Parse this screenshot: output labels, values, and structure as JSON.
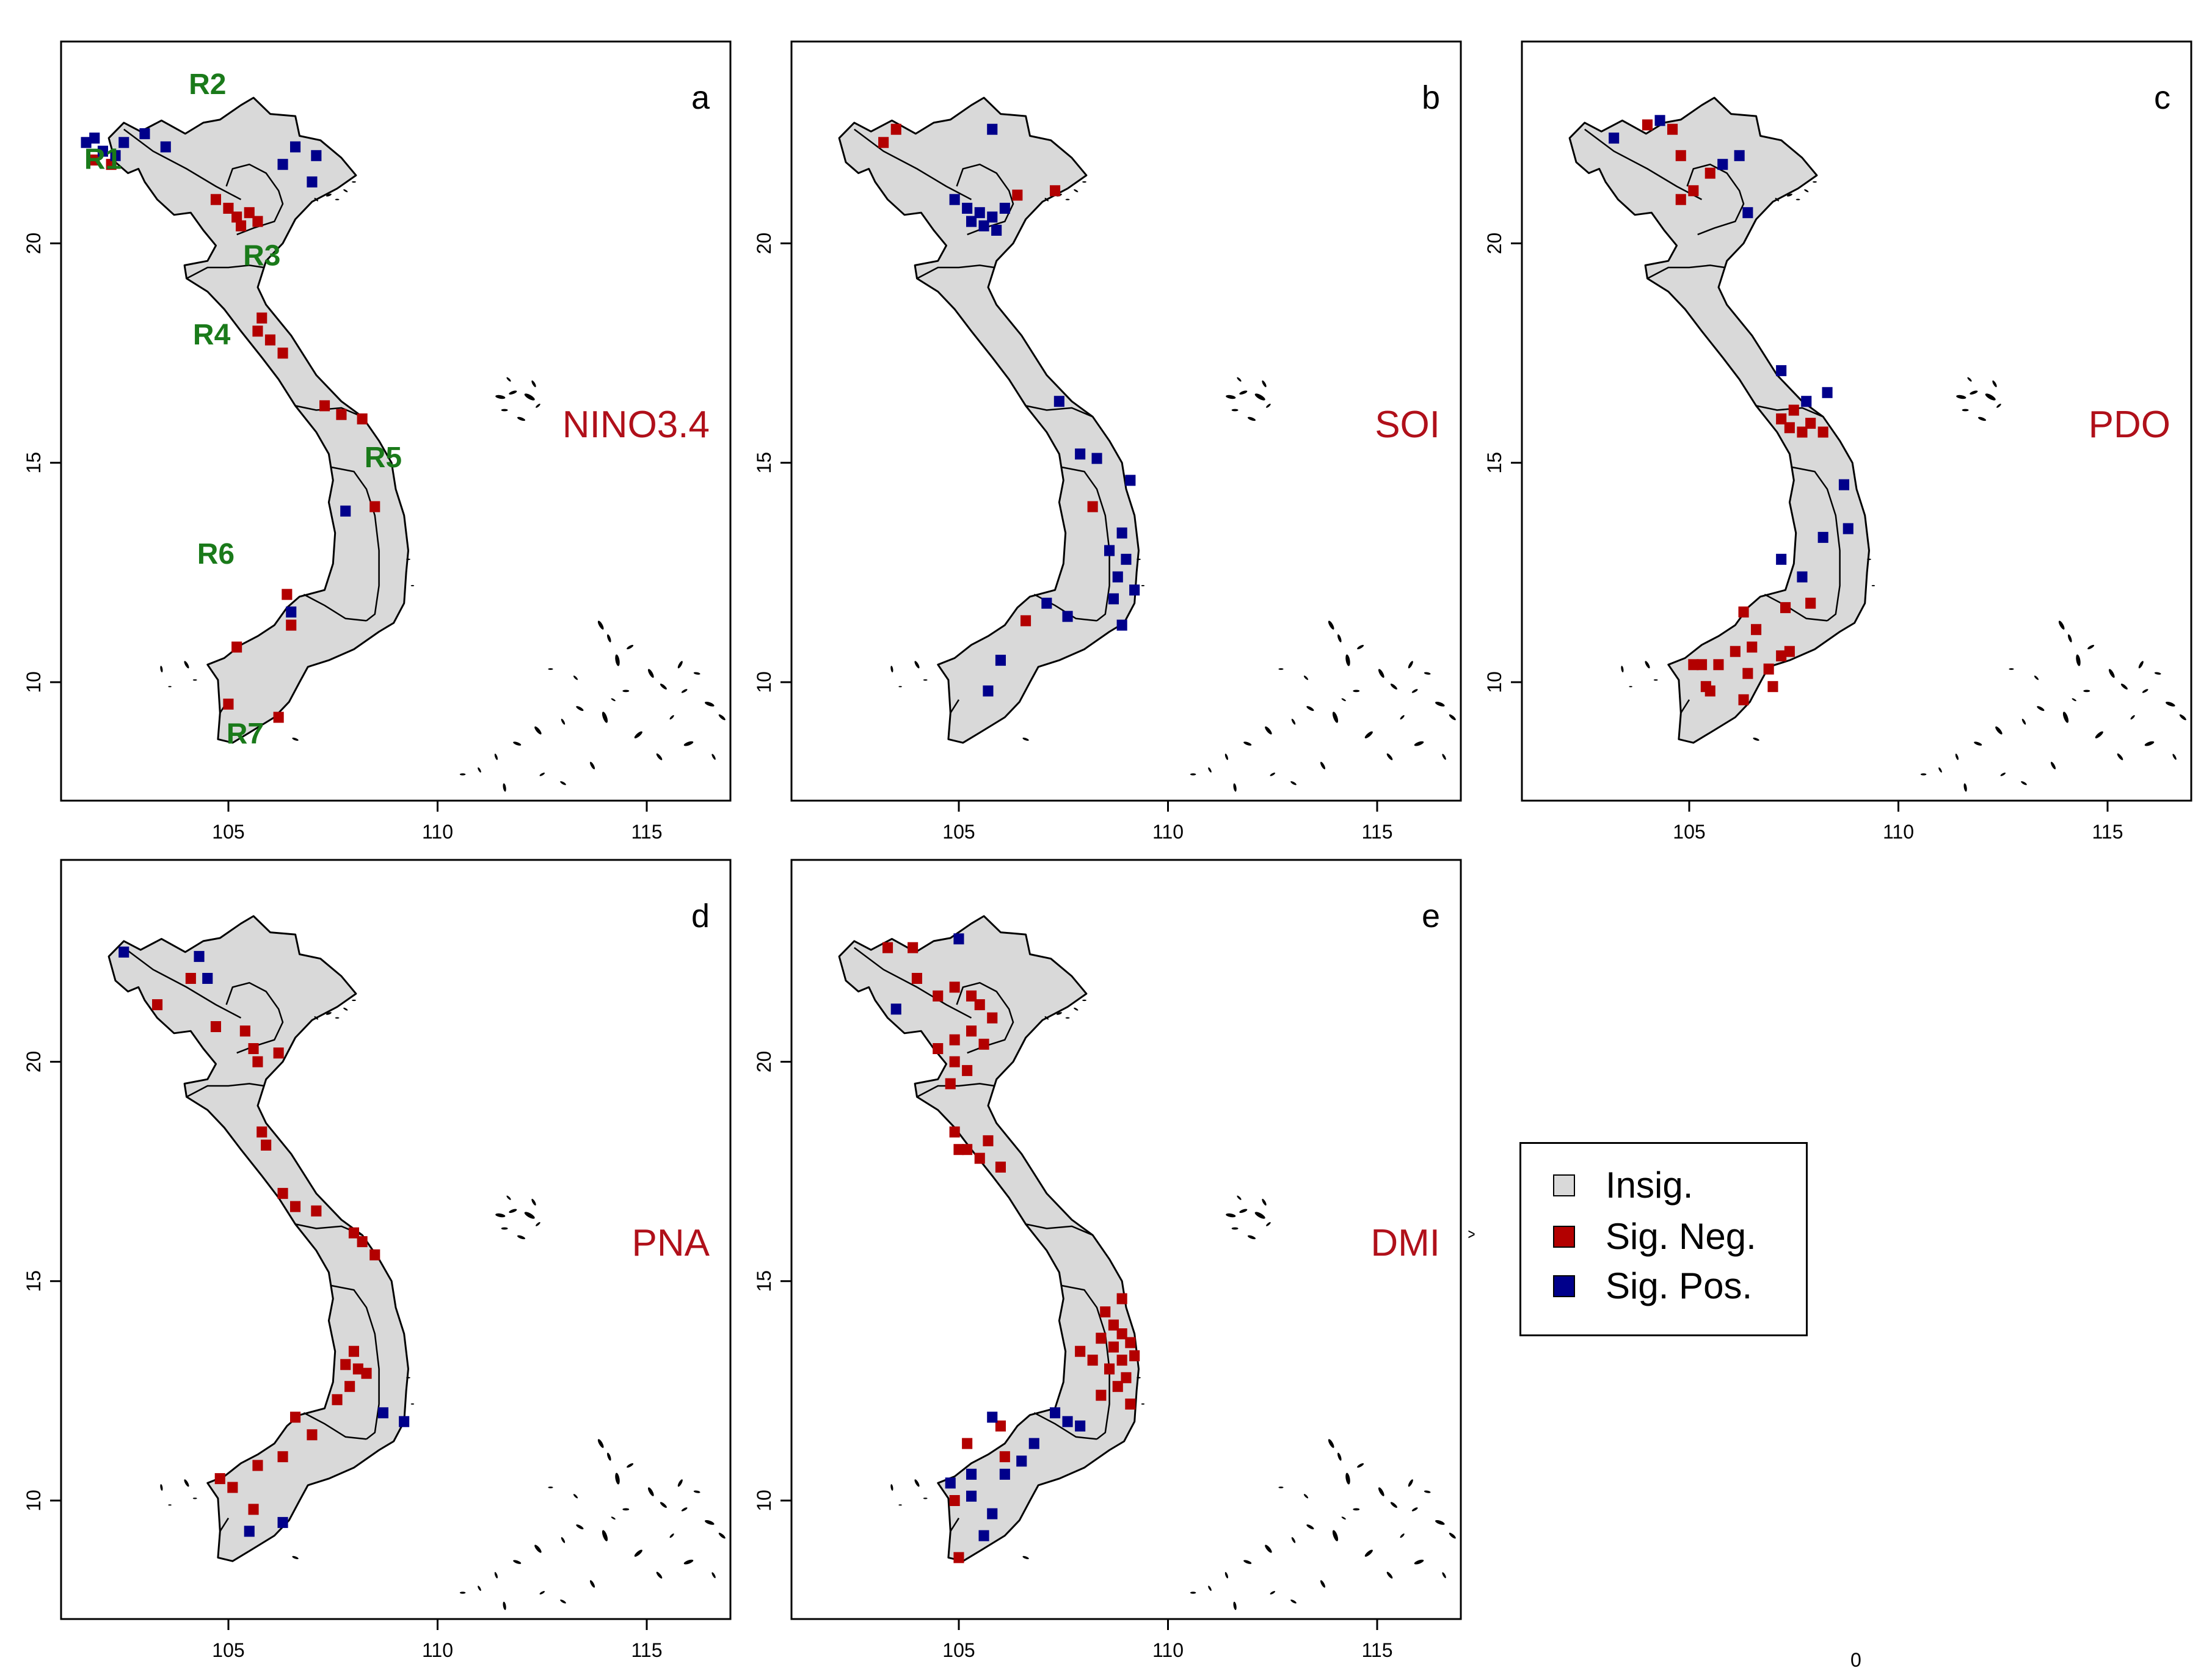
{
  "colors": {
    "land": "#d9d9d9",
    "neg": "#b30000",
    "pos": "#00008b",
    "index_label": "#b0101a",
    "region_label": "#1a7a1a"
  },
  "axes": {
    "x_ticks": [
      "105",
      "110",
      "115"
    ],
    "y_ticks": [
      "10",
      "15",
      "20"
    ],
    "x_tick_values": [
      105,
      110,
      115
    ],
    "y_tick_values": [
      10,
      15,
      20
    ],
    "xlim": [
      101.0,
      117.0
    ],
    "ylim": [
      7.3,
      24.6
    ]
  },
  "panels": [
    {
      "id": "a",
      "letter": "a",
      "index": "NINO3.4",
      "show_regions": true,
      "neg": [
        [
          101.8,
          21.9
        ],
        [
          102.2,
          21.8
        ],
        [
          104.7,
          21.0
        ],
        [
          105.0,
          20.8
        ],
        [
          105.2,
          20.6
        ],
        [
          105.5,
          20.7
        ],
        [
          105.7,
          20.5
        ],
        [
          105.3,
          20.4
        ],
        [
          105.8,
          18.3
        ],
        [
          105.7,
          18.0
        ],
        [
          106.0,
          17.8
        ],
        [
          106.3,
          17.5
        ],
        [
          107.3,
          16.3
        ],
        [
          107.7,
          16.1
        ],
        [
          108.2,
          16.0
        ],
        [
          108.5,
          14.0
        ],
        [
          106.4,
          12.0
        ],
        [
          106.5,
          11.3
        ],
        [
          105.2,
          10.8
        ],
        [
          105.0,
          9.5
        ],
        [
          106.2,
          9.2
        ]
      ],
      "pos": [
        [
          101.6,
          22.3
        ],
        [
          101.8,
          22.4
        ],
        [
          102.0,
          22.1
        ],
        [
          102.3,
          22.0
        ],
        [
          102.5,
          22.3
        ],
        [
          103.0,
          22.5
        ],
        [
          103.5,
          22.2
        ],
        [
          106.6,
          22.2
        ],
        [
          106.3,
          21.8
        ],
        [
          107.1,
          22.0
        ],
        [
          107.0,
          21.4
        ],
        [
          107.8,
          13.9
        ],
        [
          106.5,
          11.6
        ]
      ]
    },
    {
      "id": "b",
      "letter": "b",
      "index": "SOI",
      "show_regions": false,
      "neg": [
        [
          103.2,
          22.3
        ],
        [
          103.5,
          22.6
        ],
        [
          106.4,
          21.1
        ],
        [
          107.3,
          21.2
        ],
        [
          108.2,
          14.0
        ],
        [
          106.6,
          11.4
        ]
      ],
      "pos": [
        [
          104.9,
          21.0
        ],
        [
          105.2,
          20.8
        ],
        [
          105.5,
          20.7
        ],
        [
          105.8,
          20.6
        ],
        [
          106.1,
          20.8
        ],
        [
          105.3,
          20.5
        ],
        [
          105.6,
          20.4
        ],
        [
          105.9,
          20.3
        ],
        [
          105.8,
          22.6
        ],
        [
          107.4,
          16.4
        ],
        [
          107.9,
          15.2
        ],
        [
          108.3,
          15.1
        ],
        [
          109.1,
          14.6
        ],
        [
          108.9,
          13.4
        ],
        [
          108.6,
          13.0
        ],
        [
          109.0,
          12.8
        ],
        [
          108.8,
          12.4
        ],
        [
          109.2,
          12.1
        ],
        [
          108.7,
          11.9
        ],
        [
          107.6,
          11.5
        ],
        [
          108.9,
          11.3
        ],
        [
          106.0,
          10.5
        ],
        [
          105.7,
          9.8
        ],
        [
          107.1,
          11.8
        ]
      ]
    },
    {
      "id": "c",
      "letter": "c",
      "index": "PDO",
      "show_regions": false,
      "neg": [
        [
          104.0,
          22.7
        ],
        [
          104.6,
          22.6
        ],
        [
          104.8,
          22.0
        ],
        [
          105.5,
          21.6
        ],
        [
          105.1,
          21.2
        ],
        [
          104.8,
          21.0
        ],
        [
          107.2,
          16.0
        ],
        [
          107.4,
          15.8
        ],
        [
          107.7,
          15.7
        ],
        [
          107.5,
          16.2
        ],
        [
          107.9,
          15.9
        ],
        [
          108.2,
          15.7
        ],
        [
          106.3,
          11.6
        ],
        [
          106.6,
          11.2
        ],
        [
          106.5,
          10.8
        ],
        [
          106.1,
          10.7
        ],
        [
          105.7,
          10.4
        ],
        [
          105.3,
          10.4
        ],
        [
          106.4,
          10.2
        ],
        [
          106.9,
          10.3
        ],
        [
          107.2,
          10.6
        ],
        [
          107.0,
          9.9
        ],
        [
          106.3,
          9.6
        ],
        [
          105.4,
          9.9
        ],
        [
          105.1,
          10.4
        ],
        [
          105.5,
          9.8
        ],
        [
          107.4,
          10.7
        ],
        [
          107.9,
          11.8
        ],
        [
          107.3,
          11.7
        ]
      ],
      "pos": [
        [
          103.2,
          22.4
        ],
        [
          104.3,
          22.8
        ],
        [
          105.8,
          21.8
        ],
        [
          106.2,
          22.0
        ],
        [
          106.4,
          20.7
        ],
        [
          107.2,
          17.1
        ],
        [
          107.8,
          16.4
        ],
        [
          108.3,
          16.6
        ],
        [
          108.7,
          14.5
        ],
        [
          108.8,
          13.5
        ],
        [
          108.2,
          13.3
        ],
        [
          107.2,
          12.8
        ],
        [
          107.7,
          12.4
        ]
      ]
    },
    {
      "id": "d",
      "letter": "d",
      "index": "PNA",
      "show_regions": false,
      "neg": [
        [
          103.3,
          21.3
        ],
        [
          104.1,
          21.9
        ],
        [
          104.7,
          20.8
        ],
        [
          105.4,
          20.7
        ],
        [
          105.6,
          20.3
        ],
        [
          105.7,
          20.0
        ],
        [
          106.2,
          20.2
        ],
        [
          105.8,
          18.4
        ],
        [
          105.9,
          18.1
        ],
        [
          106.3,
          17.0
        ],
        [
          106.6,
          16.7
        ],
        [
          107.1,
          16.6
        ],
        [
          108.0,
          16.1
        ],
        [
          108.2,
          15.9
        ],
        [
          108.5,
          15.6
        ],
        [
          108.0,
          13.4
        ],
        [
          107.8,
          13.1
        ],
        [
          108.1,
          13.0
        ],
        [
          107.9,
          12.6
        ],
        [
          108.3,
          12.9
        ],
        [
          107.6,
          12.3
        ],
        [
          106.6,
          11.9
        ],
        [
          107.0,
          11.5
        ],
        [
          106.3,
          11.0
        ],
        [
          105.7,
          10.8
        ],
        [
          105.1,
          10.3
        ],
        [
          104.8,
          10.5
        ],
        [
          105.6,
          9.8
        ]
      ],
      "pos": [
        [
          102.5,
          22.5
        ],
        [
          104.3,
          22.4
        ],
        [
          104.5,
          21.9
        ],
        [
          108.7,
          12.0
        ],
        [
          109.2,
          11.8
        ],
        [
          106.3,
          9.5
        ],
        [
          105.5,
          9.3
        ]
      ]
    },
    {
      "id": "e",
      "letter": "e",
      "index": "DMI",
      "show_regions": false,
      "neg": [
        [
          103.3,
          22.6
        ],
        [
          103.9,
          22.6
        ],
        [
          104.0,
          21.9
        ],
        [
          104.5,
          21.5
        ],
        [
          104.9,
          21.7
        ],
        [
          105.3,
          21.5
        ],
        [
          105.5,
          21.3
        ],
        [
          105.8,
          21.0
        ],
        [
          105.3,
          20.7
        ],
        [
          104.9,
          20.5
        ],
        [
          105.6,
          20.4
        ],
        [
          104.5,
          20.3
        ],
        [
          104.9,
          20.0
        ],
        [
          105.2,
          19.8
        ],
        [
          104.8,
          19.5
        ],
        [
          104.9,
          18.4
        ],
        [
          105.2,
          18.0
        ],
        [
          105.5,
          17.8
        ],
        [
          105.0,
          18.0
        ],
        [
          105.7,
          18.2
        ],
        [
          106.0,
          17.6
        ],
        [
          108.5,
          14.3
        ],
        [
          108.7,
          14.0
        ],
        [
          108.9,
          13.8
        ],
        [
          109.1,
          13.6
        ],
        [
          108.4,
          13.7
        ],
        [
          108.7,
          13.5
        ],
        [
          108.9,
          13.2
        ],
        [
          109.2,
          13.3
        ],
        [
          108.6,
          13.0
        ],
        [
          108.2,
          13.2
        ],
        [
          107.9,
          13.4
        ],
        [
          108.8,
          12.6
        ],
        [
          109.0,
          12.8
        ],
        [
          108.4,
          12.4
        ],
        [
          109.1,
          12.2
        ],
        [
          108.9,
          14.6
        ],
        [
          106.0,
          11.7
        ],
        [
          105.2,
          11.3
        ],
        [
          106.1,
          11.0
        ],
        [
          104.9,
          10.0
        ],
        [
          105.0,
          8.7
        ]
      ],
      "pos": [
        [
          105.0,
          22.8
        ],
        [
          103.5,
          21.2
        ],
        [
          107.3,
          12.0
        ],
        [
          107.6,
          11.8
        ],
        [
          107.9,
          11.7
        ],
        [
          106.8,
          11.3
        ],
        [
          106.5,
          10.9
        ],
        [
          106.1,
          10.6
        ],
        [
          104.8,
          10.4
        ],
        [
          105.3,
          10.1
        ],
        [
          105.8,
          9.7
        ],
        [
          105.6,
          9.2
        ],
        [
          105.3,
          10.6
        ],
        [
          105.8,
          11.9
        ]
      ]
    }
  ],
  "regions": [
    {
      "name": "R1",
      "lon": 102.0,
      "lat": 21.7
    },
    {
      "name": "R2",
      "lon": 104.5,
      "lat": 23.4
    },
    {
      "name": "R3",
      "lon": 105.8,
      "lat": 19.5
    },
    {
      "name": "R4",
      "lon": 104.6,
      "lat": 17.7
    },
    {
      "name": "R5",
      "lon": 108.7,
      "lat": 14.9
    },
    {
      "name": "R6",
      "lon": 104.7,
      "lat": 12.7
    },
    {
      "name": "R7",
      "lon": 105.4,
      "lat": 8.6
    }
  ],
  "legend": {
    "items": [
      {
        "label": "Insig.",
        "kind": "land"
      },
      {
        "label": "Sig. Neg.",
        "kind": "neg"
      },
      {
        "label": "Sig. Pos.",
        "kind": "pos"
      }
    ]
  },
  "stray_marks": {
    "mark_1": "0",
    "mark_2": "^"
  }
}
